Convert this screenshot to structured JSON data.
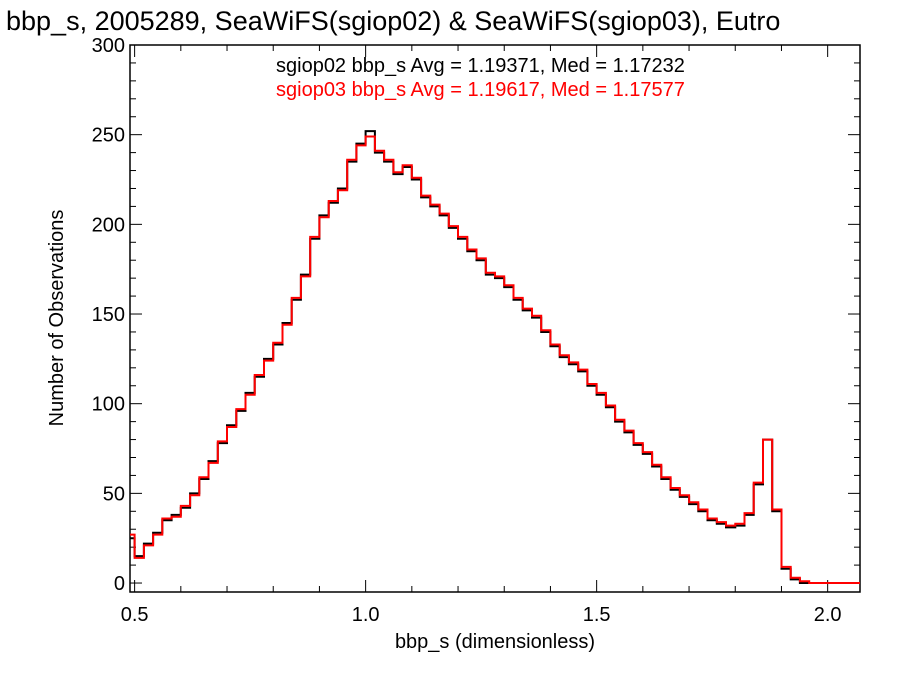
{
  "chart_data": {
    "type": "line",
    "title": "bbp_s, 2005289, SeaWiFS(sgiop02) & SeaWiFS(sgiop03), Eutro",
    "xlabel": "bbp_s (dimensionless)",
    "ylabel": "Number of Observations",
    "xlim": [
      0.49,
      2.07
    ],
    "ylim": [
      -5,
      300
    ],
    "xticks": [
      0.5,
      1.0,
      1.5,
      2.0
    ],
    "xtick_labels": [
      "0.5",
      "1.0",
      "1.5",
      "2.0"
    ],
    "yticks": [
      0,
      50,
      100,
      150,
      200,
      250,
      300
    ],
    "ytick_labels": [
      "0",
      "50",
      "100",
      "150",
      "200",
      "250",
      "300"
    ],
    "grid": false,
    "stats": [
      {
        "text": "sgiop02 bbp_s Avg = 1.19371, Med = 1.17232",
        "color": "#000000"
      },
      {
        "text": "sgiop03 bbp_s Avg = 1.19617, Med = 1.17577",
        "color": "#ff0000"
      }
    ],
    "series": [
      {
        "color": "#000000",
        "x": [
          0.49,
          0.51,
          0.53,
          0.55,
          0.57,
          0.59,
          0.61,
          0.63,
          0.65,
          0.67,
          0.69,
          0.71,
          0.73,
          0.75,
          0.77,
          0.79,
          0.81,
          0.83,
          0.85,
          0.87,
          0.89,
          0.91,
          0.93,
          0.95,
          0.97,
          0.99,
          1.01,
          1.03,
          1.05,
          1.07,
          1.09,
          1.11,
          1.13,
          1.15,
          1.17,
          1.19,
          1.21,
          1.23,
          1.25,
          1.27,
          1.29,
          1.31,
          1.33,
          1.35,
          1.37,
          1.39,
          1.41,
          1.43,
          1.45,
          1.47,
          1.49,
          1.51,
          1.53,
          1.55,
          1.57,
          1.59,
          1.61,
          1.63,
          1.65,
          1.67,
          1.69,
          1.71,
          1.73,
          1.75,
          1.77,
          1.79,
          1.81,
          1.83,
          1.85,
          1.87,
          1.89,
          1.91,
          1.93,
          1.95,
          1.97,
          1.99,
          2.01,
          2.03,
          2.05,
          2.07
        ],
        "values": [
          25,
          15,
          22,
          28,
          35,
          38,
          42,
          50,
          58,
          68,
          78,
          88,
          96,
          106,
          115,
          125,
          133,
          145,
          158,
          172,
          192,
          205,
          212,
          220,
          235,
          245,
          252,
          240,
          235,
          228,
          232,
          225,
          215,
          210,
          205,
          198,
          192,
          185,
          180,
          172,
          170,
          165,
          158,
          152,
          148,
          140,
          132,
          126,
          122,
          118,
          110,
          105,
          98,
          90,
          84,
          77,
          72,
          65,
          58,
          52,
          48,
          44,
          40,
          35,
          33,
          31,
          32,
          38,
          55,
          80,
          40,
          8,
          2,
          0,
          0,
          0,
          0,
          0,
          0,
          0
        ]
      },
      {
        "color": "#ff0000",
        "x": [
          0.49,
          0.51,
          0.53,
          0.55,
          0.57,
          0.59,
          0.61,
          0.63,
          0.65,
          0.67,
          0.69,
          0.71,
          0.73,
          0.75,
          0.77,
          0.79,
          0.81,
          0.83,
          0.85,
          0.87,
          0.89,
          0.91,
          0.93,
          0.95,
          0.97,
          0.99,
          1.01,
          1.03,
          1.05,
          1.07,
          1.09,
          1.11,
          1.13,
          1.15,
          1.17,
          1.19,
          1.21,
          1.23,
          1.25,
          1.27,
          1.29,
          1.31,
          1.33,
          1.35,
          1.37,
          1.39,
          1.41,
          1.43,
          1.45,
          1.47,
          1.49,
          1.51,
          1.53,
          1.55,
          1.57,
          1.59,
          1.61,
          1.63,
          1.65,
          1.67,
          1.69,
          1.71,
          1.73,
          1.75,
          1.77,
          1.79,
          1.81,
          1.83,
          1.85,
          1.87,
          1.89,
          1.91,
          1.93,
          1.95,
          1.97,
          1.99,
          2.01,
          2.03,
          2.05,
          2.07
        ],
        "values": [
          27,
          14,
          21,
          27,
          36,
          37,
          43,
          49,
          59,
          67,
          79,
          87,
          97,
          105,
          116,
          124,
          134,
          144,
          159,
          171,
          193,
          204,
          213,
          219,
          236,
          244,
          249,
          241,
          236,
          229,
          233,
          226,
          216,
          211,
          206,
          199,
          193,
          186,
          181,
          173,
          171,
          166,
          159,
          153,
          149,
          141,
          133,
          127,
          123,
          119,
          111,
          106,
          99,
          91,
          85,
          78,
          73,
          66,
          59,
          53,
          49,
          45,
          41,
          36,
          34,
          32,
          33,
          39,
          56,
          80,
          41,
          9,
          3,
          1,
          0,
          0,
          0,
          0,
          0,
          0
        ]
      }
    ]
  }
}
